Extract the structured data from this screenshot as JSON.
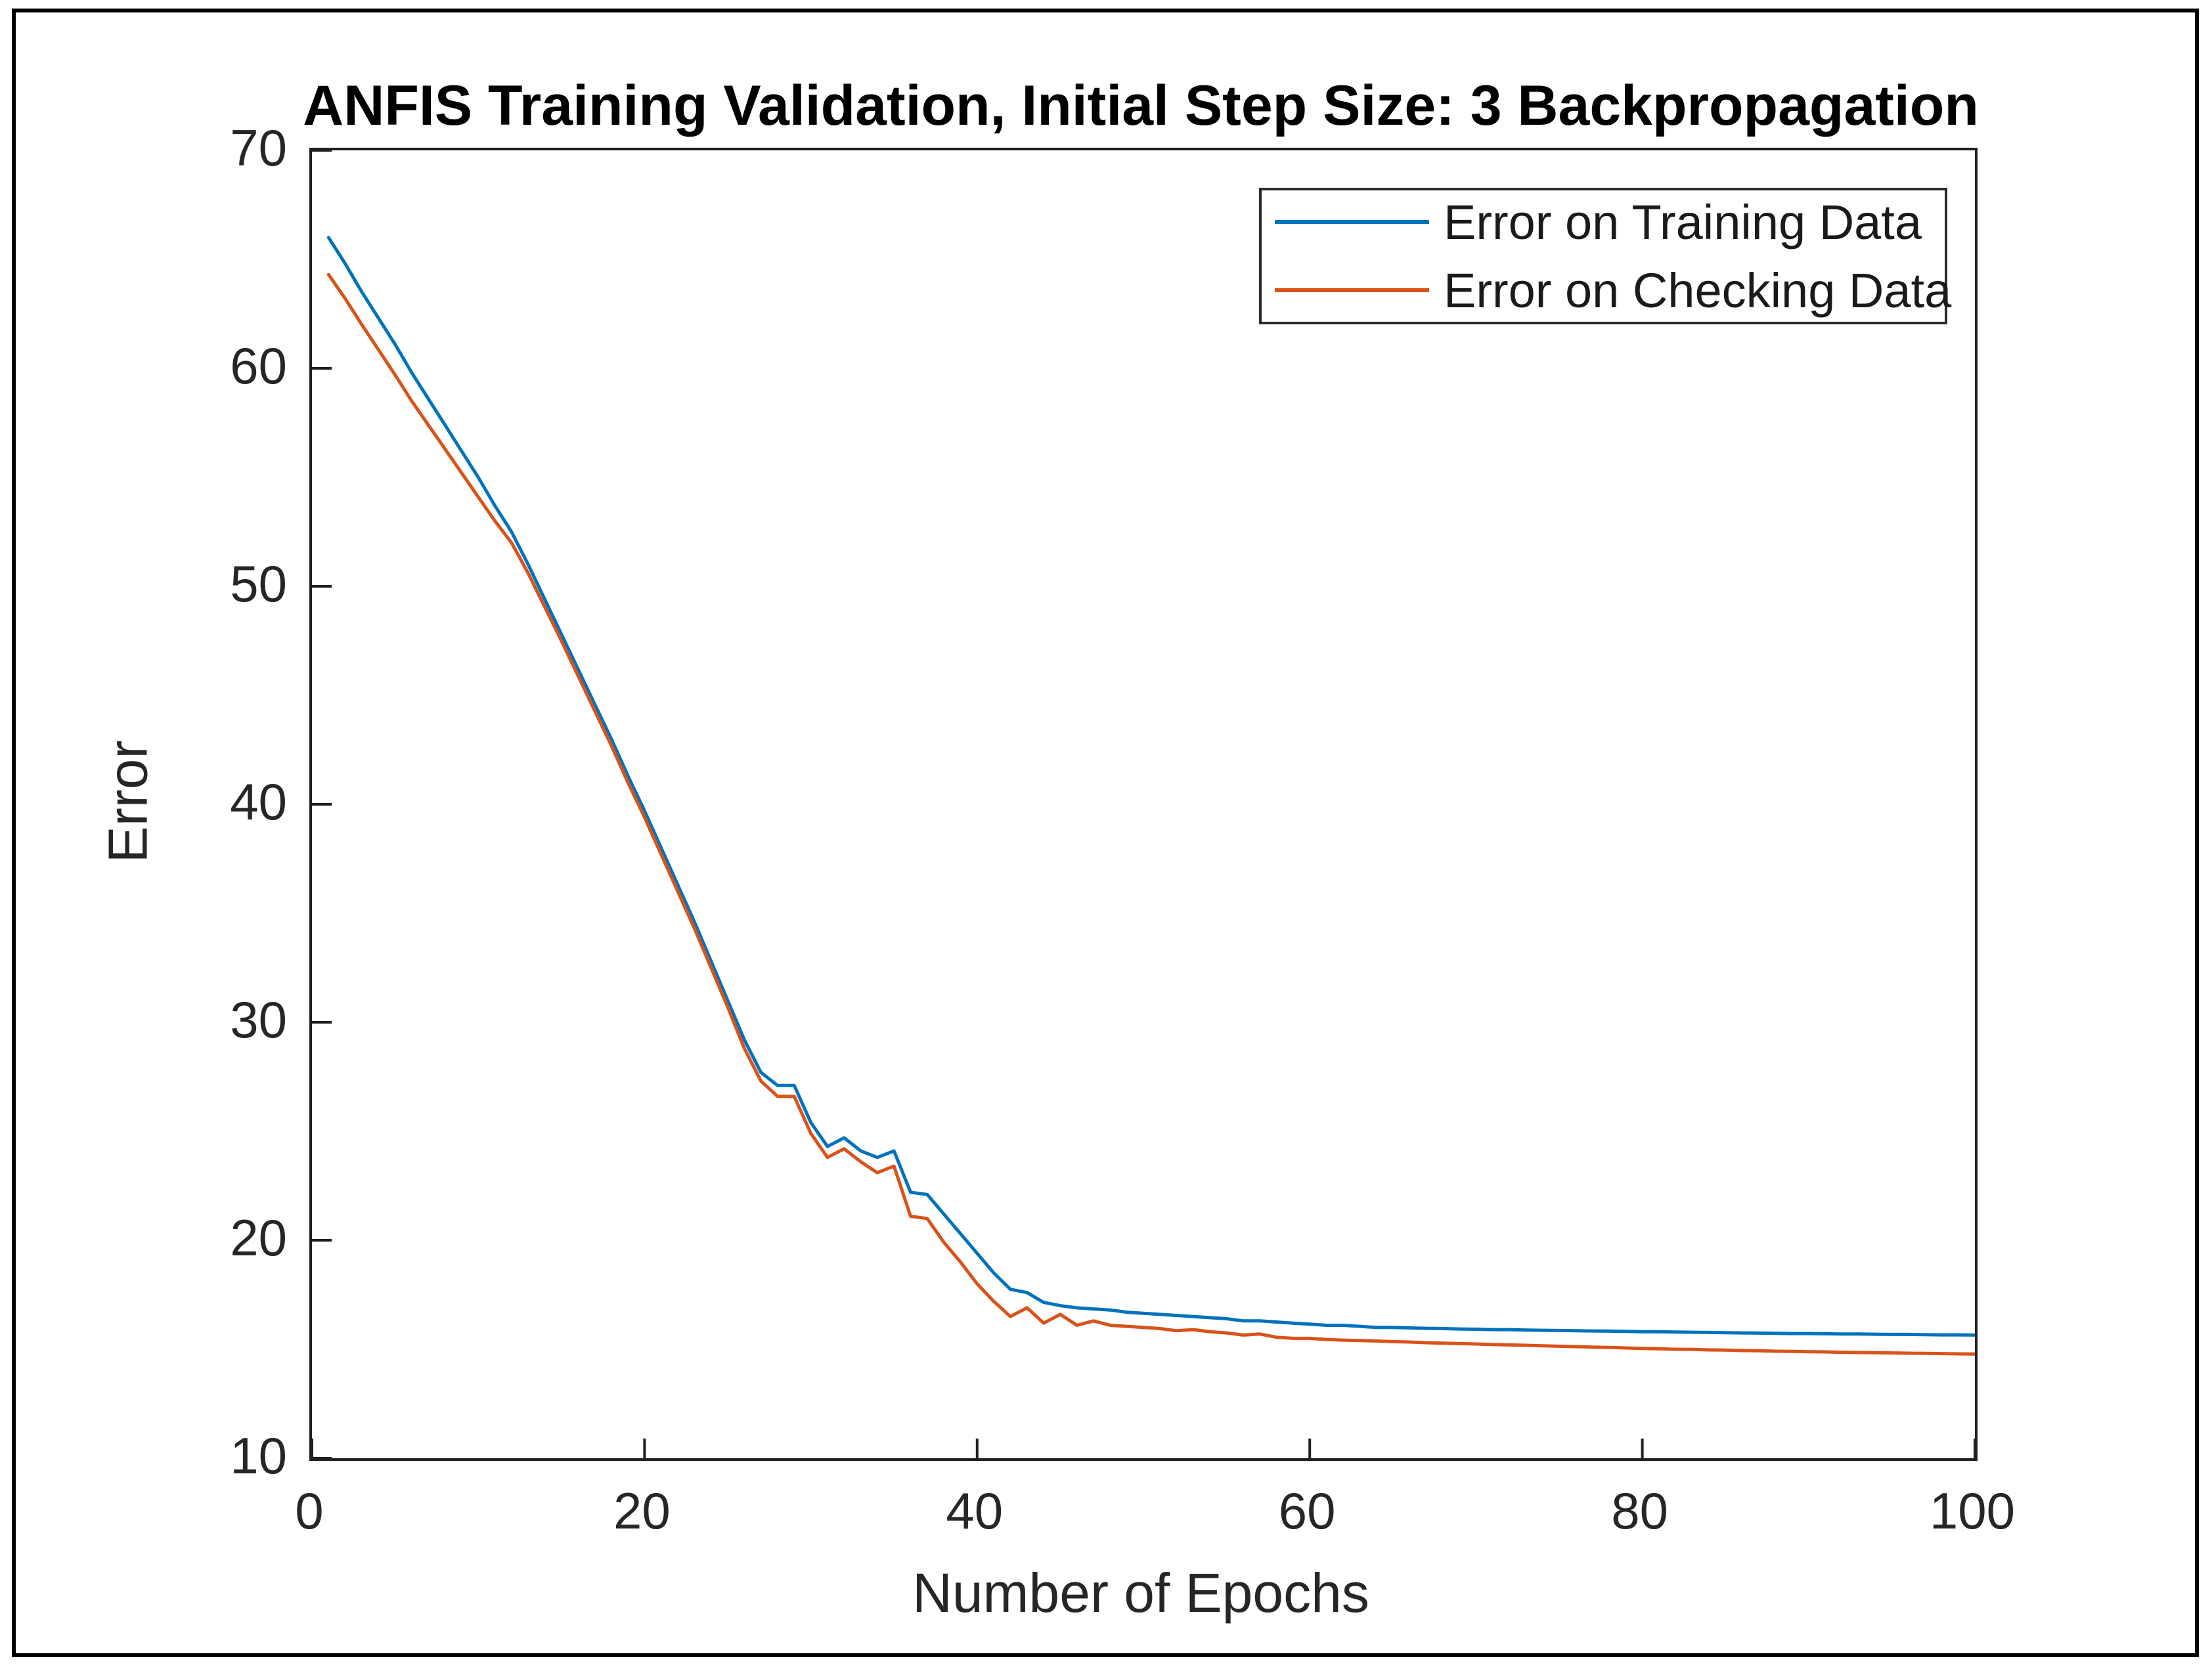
{
  "figure": {
    "title": "ANFIS Training Validation, Initial Step Size: 3 Backpropagation"
  },
  "colors": {
    "training_line": "#0072BD",
    "checking_line": "#D95319",
    "axis": "#1f1f1f",
    "tick_text": "#262626",
    "outer_border": "#000000",
    "background": "#ffffff"
  },
  "legend": {
    "entries": [
      "Error on Training Data",
      "Error on Checking Data"
    ]
  },
  "chart_data": {
    "type": "line",
    "title": "ANFIS Training Validation, Initial Step Size: 3 Backpropagation",
    "xlabel": "Number of Epochs",
    "ylabel": "Error",
    "xlim": [
      0,
      100
    ],
    "ylim": [
      10,
      70
    ],
    "xticks": [
      0,
      20,
      40,
      60,
      80,
      100
    ],
    "yticks": [
      10,
      20,
      30,
      40,
      50,
      60,
      70
    ],
    "grid": false,
    "legend_position": "upper right",
    "x": [
      1,
      2,
      3,
      4,
      5,
      6,
      7,
      8,
      9,
      10,
      11,
      12,
      13,
      14,
      15,
      16,
      17,
      18,
      19,
      20,
      21,
      22,
      23,
      24,
      25,
      26,
      27,
      28,
      29,
      30,
      31,
      32,
      33,
      34,
      35,
      36,
      37,
      38,
      39,
      40,
      41,
      42,
      43,
      44,
      45,
      46,
      47,
      48,
      49,
      50,
      51,
      52,
      53,
      54,
      55,
      56,
      57,
      58,
      59,
      60,
      61,
      62,
      63,
      64,
      65,
      66,
      67,
      68,
      69,
      70,
      71,
      72,
      73,
      74,
      75,
      76,
      77,
      78,
      79,
      80,
      81,
      82,
      83,
      84,
      85,
      86,
      87,
      88,
      89,
      90,
      91,
      92,
      93,
      94,
      95,
      96,
      97,
      98,
      99,
      100
    ],
    "series": [
      {
        "name": "Error on Training Data",
        "color": "#0072BD",
        "values": [
          66.0,
          64.8,
          63.5,
          62.3,
          61.1,
          59.8,
          58.6,
          57.4,
          56.2,
          55.0,
          53.7,
          52.5,
          51.0,
          49.4,
          47.8,
          46.2,
          44.6,
          43.0,
          41.3,
          39.7,
          38.0,
          36.3,
          34.6,
          32.8,
          31.0,
          29.2,
          27.7,
          27.1,
          27.1,
          25.4,
          24.3,
          24.7,
          24.1,
          23.8,
          24.1,
          22.2,
          22.1,
          21.2,
          20.3,
          19.4,
          18.5,
          17.75,
          17.6,
          17.15,
          17.0,
          16.9,
          16.85,
          16.8,
          16.7,
          16.65,
          16.6,
          16.55,
          16.5,
          16.45,
          16.4,
          16.3,
          16.3,
          16.25,
          16.2,
          16.15,
          16.1,
          16.1,
          16.05,
          16.0,
          16.0,
          15.98,
          15.96,
          15.95,
          15.93,
          15.92,
          15.9,
          15.9,
          15.88,
          15.87,
          15.86,
          15.85,
          15.84,
          15.83,
          15.82,
          15.8,
          15.8,
          15.79,
          15.78,
          15.77,
          15.76,
          15.75,
          15.74,
          15.73,
          15.72,
          15.72,
          15.71,
          15.7,
          15.7,
          15.69,
          15.68,
          15.68,
          15.67,
          15.66,
          15.66,
          15.65
        ]
      },
      {
        "name": "Error on Checking Data",
        "color": "#D95319",
        "values": [
          64.3,
          63.2,
          62.0,
          60.85,
          59.7,
          58.5,
          57.4,
          56.3,
          55.2,
          54.1,
          53.0,
          52.0,
          50.6,
          49.05,
          47.5,
          45.9,
          44.3,
          42.7,
          41.0,
          39.4,
          37.7,
          36.0,
          34.3,
          32.5,
          30.7,
          28.8,
          27.3,
          26.6,
          26.6,
          24.9,
          23.8,
          24.2,
          23.6,
          23.1,
          23.4,
          21.1,
          21.0,
          19.9,
          19.0,
          18.0,
          17.2,
          16.5,
          16.9,
          16.2,
          16.6,
          16.1,
          16.3,
          16.1,
          16.05,
          16.0,
          15.95,
          15.85,
          15.9,
          15.8,
          15.75,
          15.65,
          15.7,
          15.55,
          15.5,
          15.5,
          15.45,
          15.42,
          15.4,
          15.38,
          15.35,
          15.33,
          15.3,
          15.28,
          15.26,
          15.24,
          15.22,
          15.2,
          15.18,
          15.16,
          15.14,
          15.12,
          15.1,
          15.08,
          15.06,
          15.04,
          15.02,
          15.0,
          14.99,
          14.97,
          14.96,
          14.94,
          14.93,
          14.91,
          14.9,
          14.89,
          14.88,
          14.86,
          14.85,
          14.84,
          14.83,
          14.82,
          14.81,
          14.8,
          14.79,
          14.78
        ]
      }
    ]
  }
}
